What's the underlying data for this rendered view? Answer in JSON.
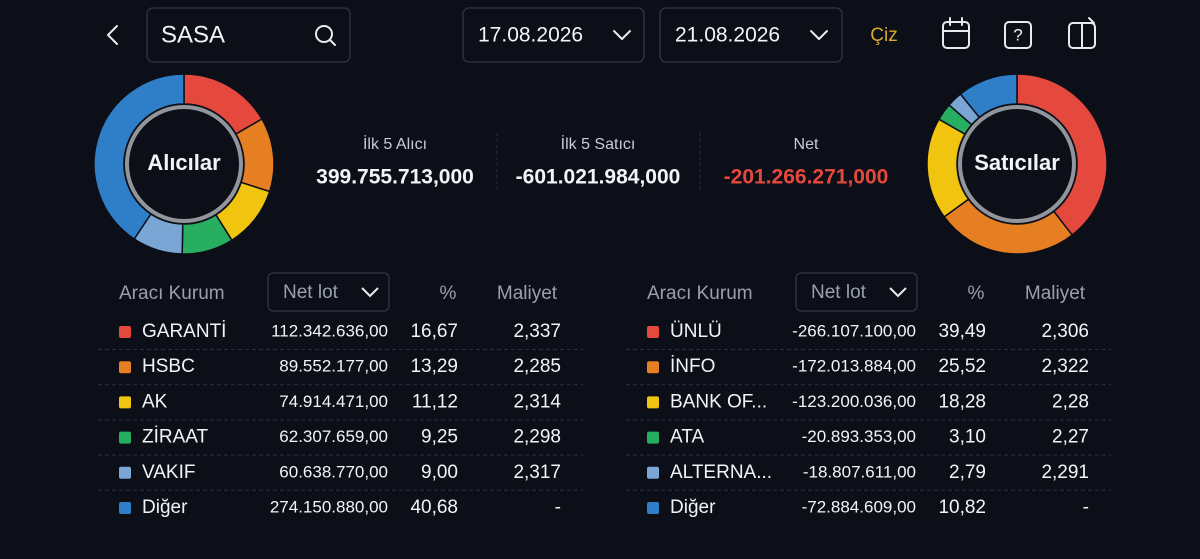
{
  "header": {
    "search": "SASA",
    "start_date": "17.08.2026",
    "end_date": "21.08.2026",
    "draw_button": "Çiz"
  },
  "summary": [
    {
      "label": "İlk 5 Alıcı",
      "value": "399.755.713,000"
    },
    {
      "label": "İlk 5 Satıcı",
      "value": "-601.021.984,000"
    },
    {
      "label": "Net",
      "value": "-201.266.271,000"
    }
  ],
  "buyers": {
    "title": "Alıcılar",
    "columns": [
      "Aracı Kurum",
      "Net lot",
      "%",
      "Maliyet"
    ],
    "rows": [
      {
        "name": "GARANTİ",
        "color": "#e5483d",
        "net_lot": "112.342.636,00",
        "pct": {
          "value": 16.67,
          "label": "16,67"
        },
        "cost": "2,337"
      },
      {
        "name": "HSBC",
        "color": "#e67e22",
        "net_lot": "89.552.177,00",
        "pct": {
          "value": 13.29,
          "label": "13,29"
        },
        "cost": "2,285"
      },
      {
        "name": "AK",
        "color": "#f1c40f",
        "net_lot": "74.914.471,00",
        "pct": {
          "value": 11.12,
          "label": "11,12"
        },
        "cost": "2,314"
      },
      {
        "name": "ZİRAAT",
        "color": "#27ae60",
        "net_lot": "62.307.659,00",
        "pct": {
          "value": 9.25,
          "label": "9,25"
        },
        "cost": "2,298"
      },
      {
        "name": "VAKIF",
        "color": "#7aa6d6",
        "net_lot": "60.638.770,00",
        "pct": {
          "value": 9.0,
          "label": "9,00"
        },
        "cost": "2,317"
      },
      {
        "name": "Diğer",
        "color": "#2f7fc8",
        "net_lot": "274.150.880,00",
        "pct": {
          "value": 40.68,
          "label": "40,68"
        },
        "cost": "-"
      }
    ]
  },
  "sellers": {
    "title": "Satıcılar",
    "columns": [
      "Aracı Kurum",
      "Net lot",
      "%",
      "Maliyet"
    ],
    "rows": [
      {
        "name": "ÜNLÜ",
        "color": "#e5483d",
        "net_lot": "-266.107.100,00",
        "pct": {
          "value": 39.49,
          "label": "39,49"
        },
        "cost": "2,306"
      },
      {
        "name": "İNFO",
        "color": "#e67e22",
        "net_lot": "-172.013.884,00",
        "pct": {
          "value": 25.52,
          "label": "25,52"
        },
        "cost": "2,322"
      },
      {
        "name": "BANK OF...",
        "color": "#f1c40f",
        "net_lot": "-123.200.036,00",
        "pct": {
          "value": 18.28,
          "label": "18,28"
        },
        "cost": "2,28"
      },
      {
        "name": "ATA",
        "color": "#27ae60",
        "net_lot": "-20.893.353,00",
        "pct": {
          "value": 3.1,
          "label": "3,10"
        },
        "cost": "2,27"
      },
      {
        "name": "ALTERNA...",
        "color": "#7aa6d6",
        "net_lot": "-18.807.611,00",
        "pct": {
          "value": 2.79,
          "label": "2,79"
        },
        "cost": "2,291"
      },
      {
        "name": "Diğer",
        "color": "#2f7fc8",
        "net_lot": "-72.884.609,00",
        "pct": {
          "value": 10.82,
          "label": "10,82"
        },
        "cost": "-"
      }
    ]
  }
}
